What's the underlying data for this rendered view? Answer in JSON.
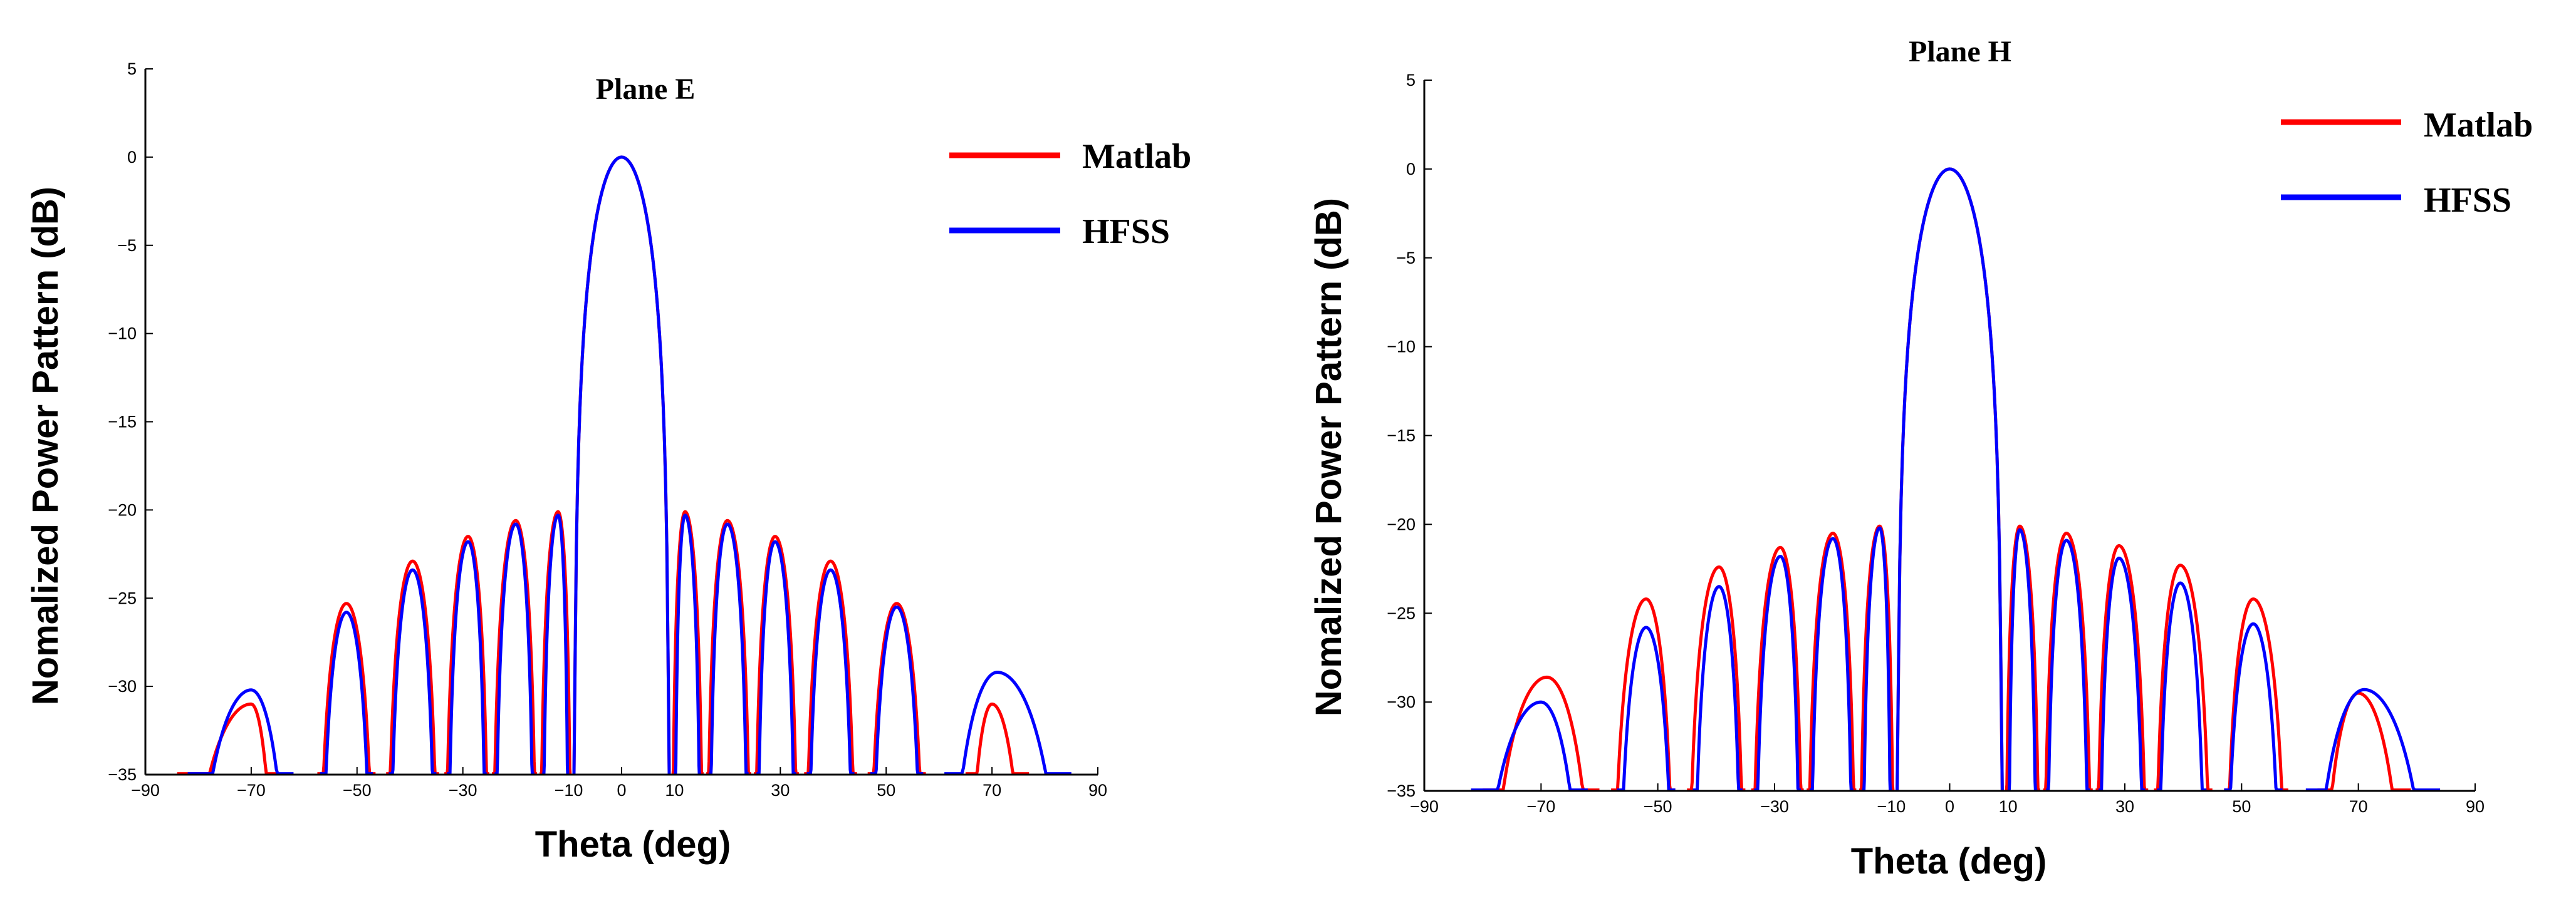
{
  "colors": {
    "matlab": "#ff0000",
    "hfss": "#0000ff",
    "axis": "#000000"
  },
  "chart_data": [
    {
      "type": "line",
      "title": "Plane E",
      "xlabel": "Theta (deg)",
      "ylabel": "Nomalized Power Pattern (dB)",
      "xlim": [
        -90,
        90
      ],
      "ylim": [
        -35,
        5
      ],
      "xticks": [
        -90,
        -70,
        -50,
        -30,
        -10,
        0,
        10,
        30,
        50,
        70,
        90
      ],
      "yticks": [
        5,
        0,
        -5,
        -10,
        -15,
        -20,
        -25,
        -30,
        -35
      ],
      "xtick_labels": [
        "−90",
        "−70",
        "−50",
        "−30",
        "−10",
        "0",
        "10",
        "30",
        "50",
        "70",
        "90"
      ],
      "ytick_labels": [
        "5",
        "0",
        "−5",
        "−10",
        "−15",
        "−20",
        "−25",
        "−30",
        "−35"
      ],
      "legend": {
        "position": "top-right",
        "entries": [
          "Matlab",
          "HFSS"
        ]
      },
      "main_lobe": {
        "center": 0,
        "null_left": -9,
        "null_right": 9,
        "peak": 0
      },
      "series": [
        {
          "name": "Matlab",
          "lobes": [
            [
              -84,
              -65,
              -31,
              -70
            ],
            [
              -57.5,
              -46.5,
              -25.3,
              -52
            ],
            [
              -44.5,
              -34.5,
              -22.9,
              -39.5
            ],
            [
              -33.5,
              -25,
              -21.5,
              -29
            ],
            [
              -24.5,
              -16,
              -20.6,
              -20
            ],
            [
              -15.5,
              -9.5,
              -20.1,
              -12
            ],
            [
              9.5,
              15.5,
              -20.1,
              12
            ],
            [
              16,
              24.5,
              -20.6,
              20
            ],
            [
              25,
              33.5,
              -21.5,
              29
            ],
            [
              34.5,
              44.5,
              -22.9,
              39.5
            ],
            [
              46.5,
              57.5,
              -25.3,
              52
            ],
            [
              65,
              77,
              -31,
              70
            ]
          ]
        },
        {
          "name": "HFSS",
          "lobes": [
            [
              -82,
              -62,
              -30.2,
              -70
            ],
            [
              -57,
              -47,
              -25.8,
              -52
            ],
            [
              -44,
              -35,
              -23.4,
              -39.5
            ],
            [
              -33,
              -25.5,
              -21.8,
              -29
            ],
            [
              -24,
              -16.5,
              -20.8,
              -20
            ],
            [
              -15,
              -10,
              -20.3,
              -12
            ],
            [
              10,
              15,
              -20.3,
              12
            ],
            [
              16.5,
              24,
              -20.8,
              20
            ],
            [
              25.5,
              33,
              -21.8,
              29
            ],
            [
              35,
              44,
              -23.4,
              39.5
            ],
            [
              47,
              57,
              -25.5,
              52
            ],
            [
              61,
              85,
              -29.2,
              71
            ]
          ]
        }
      ]
    },
    {
      "type": "line",
      "title": "Plane H",
      "xlabel": "Theta (deg)",
      "ylabel": "Nomalized Power Pattern (dB)",
      "xlim": [
        -90,
        90
      ],
      "ylim": [
        -35,
        5
      ],
      "xticks": [
        -90,
        -70,
        -50,
        -30,
        -10,
        0,
        10,
        30,
        50,
        70,
        90
      ],
      "yticks": [
        5,
        0,
        -5,
        -10,
        -15,
        -20,
        -25,
        -30,
        -35
      ],
      "xtick_labels": [
        "−90",
        "−70",
        "−50",
        "−30",
        "−10",
        "0",
        "10",
        "30",
        "50",
        "70",
        "90"
      ],
      "ytick_labels": [
        "5",
        "0",
        "−5",
        "−10",
        "−15",
        "−20",
        "−25",
        "−30",
        "−35"
      ],
      "legend": {
        "position": "top-right",
        "entries": [
          "Matlab",
          "HFSS"
        ]
      },
      "main_lobe": {
        "center": 0,
        "null_left": -9,
        "null_right": 9,
        "peak": 0
      },
      "series": [
        {
          "name": "Matlab",
          "lobes": [
            [
              -80,
              -60,
              -28.6,
              -69
            ],
            [
              -58,
              -47,
              -24.2,
              -52
            ],
            [
              -45,
              -35,
              -22.4,
              -39.5
            ],
            [
              -34,
              -25,
              -21.3,
              -29
            ],
            [
              -24.5,
              -16,
              -20.5,
              -20
            ],
            [
              -15.5,
              -9.5,
              -20.1,
              -12
            ],
            [
              9.5,
              15.5,
              -20.1,
              12
            ],
            [
              16,
              24.5,
              -20.5,
              20
            ],
            [
              25,
              34,
              -21.2,
              29
            ],
            [
              35,
              45,
              -22.3,
              39.5
            ],
            [
              47,
              58,
              -24.2,
              52
            ],
            [
              63,
              79,
              -29.5,
              70
            ]
          ]
        },
        {
          "name": "HFSS",
          "lobes": [
            [
              -82,
              -62,
              -30,
              -70
            ],
            [
              -57,
              -47,
              -25.8,
              -52
            ],
            [
              -44,
              -35.5,
              -23.5,
              -39.5
            ],
            [
              -33.5,
              -25.5,
              -21.8,
              -29
            ],
            [
              -24,
              -16.5,
              -20.8,
              -20
            ],
            [
              -15,
              -10,
              -20.2,
              -12
            ],
            [
              10,
              15,
              -20.3,
              12
            ],
            [
              16.5,
              24,
              -20.9,
              20
            ],
            [
              25.5,
              33.5,
              -21.9,
              29
            ],
            [
              35.5,
              44,
              -23.3,
              39.5
            ],
            [
              47,
              57,
              -25.6,
              52
            ],
            [
              61,
              84,
              -29.3,
              71
            ]
          ]
        }
      ]
    }
  ]
}
